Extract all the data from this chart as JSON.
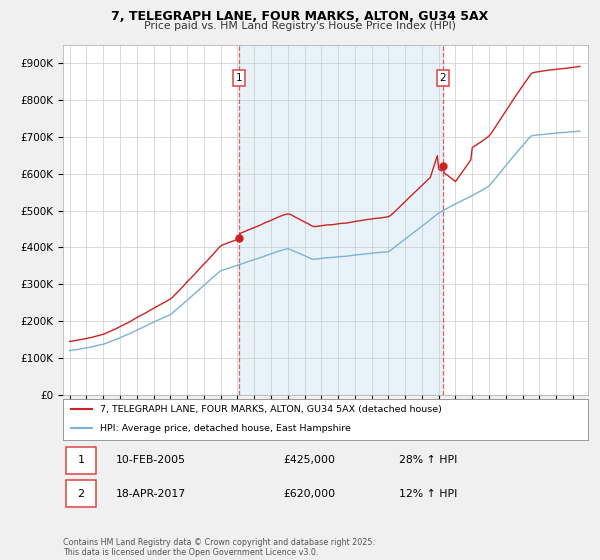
{
  "title": "7, TELEGRAPH LANE, FOUR MARKS, ALTON, GU34 5AX",
  "subtitle": "Price paid vs. HM Land Registry's House Price Index (HPI)",
  "hpi_color": "#7ab3d4",
  "price_color": "#cc2222",
  "vline_color": "#dd4444",
  "marker1_x": 2005.08,
  "marker1_price": 425000,
  "marker1_label": "1",
  "marker1_hpi_pct": "28% ↑ HPI",
  "marker1_date_str": "10-FEB-2005",
  "marker2_x": 2017.25,
  "marker2_price": 620000,
  "marker2_label": "2",
  "marker2_hpi_pct": "12% ↑ HPI",
  "marker2_date_str": "18-APR-2017",
  "legend_line1": "7, TELEGRAPH LANE, FOUR MARKS, ALTON, GU34 5AX (detached house)",
  "legend_line2": "HPI: Average price, detached house, East Hampshire",
  "footer": "Contains HM Land Registry data © Crown copyright and database right 2025.\nThis data is licensed under the Open Government Licence v3.0.",
  "ylim_low": 0,
  "ylim_high": 950000,
  "yticks": [
    0,
    100000,
    200000,
    300000,
    400000,
    500000,
    600000,
    700000,
    800000,
    900000
  ],
  "xlim_low": 1994.6,
  "xlim_high": 2025.9,
  "background": "#f0f0f0",
  "plot_bg": "#ffffff",
  "shade_color": "#d0e8f5"
}
